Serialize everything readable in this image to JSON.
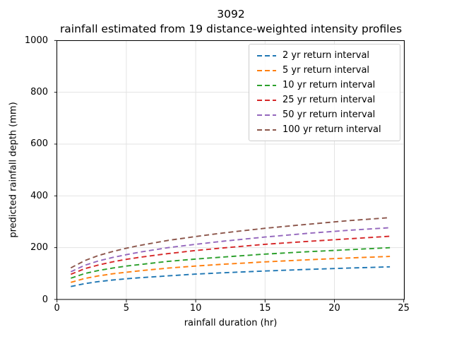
{
  "title": {
    "line1": "3092",
    "line2": "rainfall estimated from 19 distance-weighted intensity profiles"
  },
  "axes": {
    "xlabel": "rainfall duration (hr)",
    "ylabel": "predicted rainfall depth (mm)",
    "xticks": [
      0,
      5,
      10,
      15,
      20,
      25
    ],
    "yticks": [
      0,
      200,
      400,
      600,
      800,
      1000
    ]
  },
  "chart_data": {
    "type": "line",
    "title": "3092 — rainfall estimated from 19 distance-weighted intensity profiles",
    "xlabel": "rainfall duration (hr)",
    "ylabel": "predicted rainfall depth (mm)",
    "xlim": [
      0,
      25
    ],
    "ylim": [
      0,
      1000
    ],
    "grid": true,
    "grid_color": "#e3e3e3",
    "legend_position": "upper right",
    "line_style": "dashed",
    "x": [
      1,
      2,
      3,
      4,
      5,
      6,
      8,
      10,
      12,
      15,
      18,
      21,
      24
    ],
    "series": [
      {
        "name": "2 yr return interval",
        "color": "#1f77b4",
        "values": [
          50,
          61,
          69,
          75,
          80,
          84,
          91,
          98,
          103,
          110,
          116,
          121,
          126
        ]
      },
      {
        "name": "5 yr return interval",
        "color": "#ff7f0e",
        "values": [
          66,
          81,
          91,
          99,
          105,
          111,
          121,
          129,
          136,
          145,
          153,
          160,
          166
        ]
      },
      {
        "name": "10 yr return interval",
        "color": "#2ca02c",
        "values": [
          82,
          100,
          112,
          121,
          129,
          135,
          147,
          156,
          164,
          175,
          184,
          192,
          200
        ]
      },
      {
        "name": "25 yr return interval",
        "color": "#d62728",
        "values": [
          97,
          119,
          133,
          145,
          155,
          163,
          177,
          189,
          199,
          213,
          224,
          234,
          244
        ]
      },
      {
        "name": "50 yr return interval",
        "color": "#9467bd",
        "values": [
          107,
          132,
          149,
          162,
          173,
          183,
          200,
          213,
          225,
          241,
          255,
          267,
          277
        ]
      },
      {
        "name": "100 yr return interval",
        "color": "#8c564b",
        "values": [
          122,
          150,
          170,
          185,
          198,
          209,
          228,
          243,
          257,
          275,
          290,
          304,
          316
        ]
      }
    ]
  }
}
